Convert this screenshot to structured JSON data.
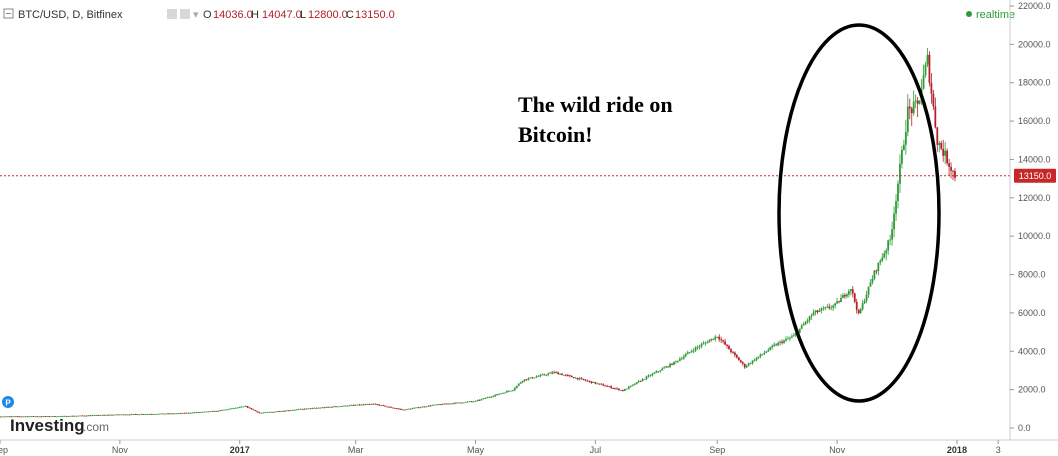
{
  "header": {
    "symbol": "BTC/USD, D, Bitfinex",
    "open_label": "O",
    "open_value": "14036.0",
    "high_label": "H",
    "high_value": "14047.0",
    "low_label": "L",
    "low_value": "12800.0",
    "close_label": "C",
    "close_value": "13150.0",
    "realtime_label": "realtime"
  },
  "annotation": {
    "line1": "The wild ride on",
    "line2": "Bitcoin!"
  },
  "watermark": {
    "brand": "Investing",
    "suffix": ".com",
    "badge": "P"
  },
  "price_badge": "13150.0",
  "colors": {
    "up": "#2e9b36",
    "down": "#b2202a",
    "last_price_line": "#c62828",
    "ellipse": "#000000",
    "realtime_dot": "#2e9b36"
  },
  "chart_data": {
    "type": "candlestick",
    "title": "BTC/USD, D, Bitfinex",
    "last_price": 13150.0,
    "ylim": [
      0,
      22000
    ],
    "y_ticks": [
      0,
      2000,
      4000,
      6000,
      8000,
      10000,
      12000,
      14000,
      16000,
      18000,
      20000,
      22000
    ],
    "y_tick_labels": [
      "0.0",
      "2000.0",
      "4000.0",
      "6000.0",
      "8000.0",
      "10000.0",
      "12000.0",
      "14000.0",
      "16000.0",
      "18000.0",
      "20000.0",
      "22000.0"
    ],
    "x_range": [
      "2016-09-01",
      "2018-01-28"
    ],
    "x_ticks": [
      {
        "label": "Sep",
        "date": "2016-09-01",
        "bold": false
      },
      {
        "label": "Nov",
        "date": "2016-11-01",
        "bold": false
      },
      {
        "label": "2017",
        "date": "2017-01-01",
        "bold": true
      },
      {
        "label": "Mar",
        "date": "2017-03-01",
        "bold": false
      },
      {
        "label": "May",
        "date": "2017-05-01",
        "bold": false
      },
      {
        "label": "Jul",
        "date": "2017-07-01",
        "bold": false
      },
      {
        "label": "Sep",
        "date": "2017-09-01",
        "bold": false
      },
      {
        "label": "Nov",
        "date": "2017-11-01",
        "bold": false
      },
      {
        "label": "2018",
        "date": "2018-01-01",
        "bold": true
      },
      {
        "label": "3",
        "date": "2018-01-22",
        "bold": false
      }
    ],
    "price_path": [
      [
        "2016-09-01",
        600
      ],
      [
        "2016-10-01",
        610
      ],
      [
        "2016-11-01",
        700
      ],
      [
        "2016-12-01",
        760
      ],
      [
        "2016-12-20",
        880
      ],
      [
        "2017-01-04",
        1130
      ],
      [
        "2017-01-11",
        780
      ],
      [
        "2017-02-01",
        980
      ],
      [
        "2017-02-25",
        1170
      ],
      [
        "2017-03-10",
        1250
      ],
      [
        "2017-03-25",
        950
      ],
      [
        "2017-04-10",
        1200
      ],
      [
        "2017-05-01",
        1400
      ],
      [
        "2017-05-20",
        2000
      ],
      [
        "2017-05-25",
        2500
      ],
      [
        "2017-06-10",
        2900
      ],
      [
        "2017-06-25",
        2500
      ],
      [
        "2017-07-15",
        1950
      ],
      [
        "2017-07-28",
        2700
      ],
      [
        "2017-08-10",
        3400
      ],
      [
        "2017-08-20",
        4100
      ],
      [
        "2017-09-01",
        4800
      ],
      [
        "2017-09-15",
        3200
      ],
      [
        "2017-09-30",
        4300
      ],
      [
        "2017-10-10",
        4800
      ],
      [
        "2017-10-20",
        6000
      ],
      [
        "2017-10-31",
        6400
      ],
      [
        "2017-11-08",
        7300
      ],
      [
        "2017-11-12",
        5900
      ],
      [
        "2017-11-20",
        8100
      ],
      [
        "2017-11-28",
        9800
      ],
      [
        "2017-12-07",
        16500
      ],
      [
        "2017-12-12",
        16800
      ],
      [
        "2017-12-17",
        19200
      ],
      [
        "2017-12-22",
        15000
      ],
      [
        "2017-12-27",
        14000
      ],
      [
        "2017-12-31",
        13150
      ]
    ]
  }
}
